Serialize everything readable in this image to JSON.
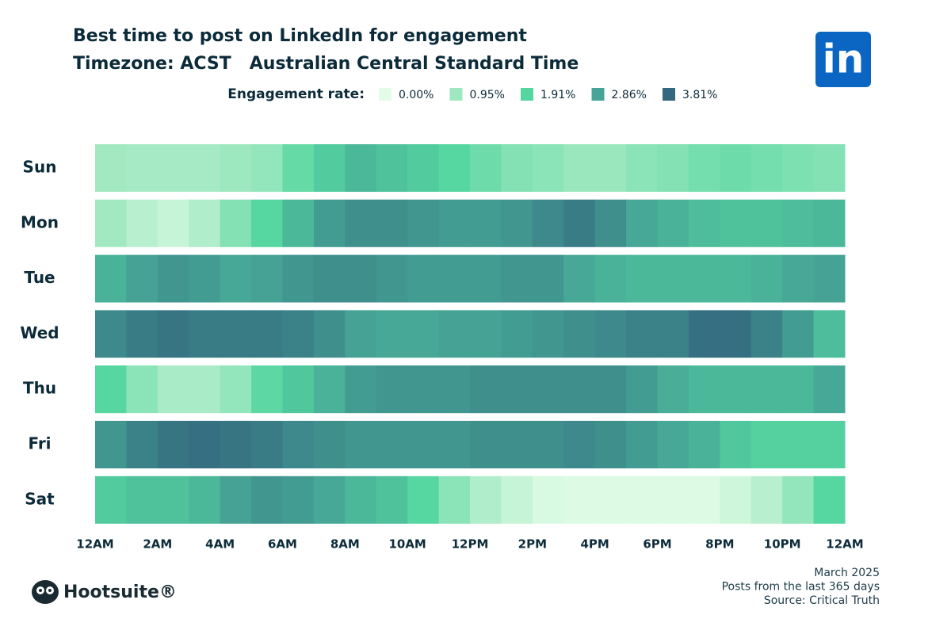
{
  "chart_data": {
    "type": "heatmap",
    "title": "Best time to post on LinkedIn for engagement",
    "subtitle": "Timezone: ACST   Australian Central Standard Time",
    "legend_title": "Engagement rate:",
    "color_scale": [
      {
        "value": 0,
        "label": "0.00%",
        "color": "#e3fce8"
      },
      {
        "value": 0.95,
        "label": "0.95%",
        "color": "#9ee8c0"
      },
      {
        "value": 1.91,
        "label": "1.91%",
        "color": "#55d6a0"
      },
      {
        "value": 2.86,
        "label": "2.86%",
        "color": "#46a596"
      },
      {
        "value": 3.81,
        "label": "3.81%",
        "color": "#33687e"
      }
    ],
    "categories": [
      "Sun",
      "Mon",
      "Tue",
      "Wed",
      "Thu",
      "Fri",
      "Sat"
    ],
    "x": [
      0,
      1,
      2,
      3,
      4,
      5,
      6,
      7,
      8,
      9,
      10,
      11,
      12,
      13,
      14,
      15,
      16,
      17,
      18,
      19,
      20,
      21,
      22,
      23
    ],
    "xlim": [
      0,
      24
    ],
    "xticks": [
      {
        "value": 0,
        "label": "12AM"
      },
      {
        "value": 2,
        "label": "2AM"
      },
      {
        "value": 4,
        "label": "4AM"
      },
      {
        "value": 6,
        "label": "6AM"
      },
      {
        "value": 8,
        "label": "8AM"
      },
      {
        "value": 10,
        "label": "10AM"
      },
      {
        "value": 12,
        "label": "12PM"
      },
      {
        "value": 14,
        "label": "2PM"
      },
      {
        "value": 16,
        "label": "4PM"
      },
      {
        "value": 18,
        "label": "6PM"
      },
      {
        "value": 20,
        "label": "8PM"
      },
      {
        "value": 22,
        "label": "10PM"
      },
      {
        "value": 24,
        "label": "12AM"
      }
    ],
    "values": [
      [
        0.9,
        0.85,
        0.85,
        0.85,
        0.95,
        1.1,
        1.7,
        2.1,
        2.5,
        2.3,
        2.1,
        1.9,
        1.6,
        1.3,
        1.2,
        1.0,
        1.0,
        1.2,
        1.3,
        1.5,
        1.6,
        1.5,
        1.4,
        1.3
      ],
      [
        0.9,
        0.6,
        0.4,
        0.7,
        1.3,
        1.9,
        2.5,
        3.0,
        3.2,
        3.2,
        3.1,
        3.0,
        3.0,
        3.1,
        3.3,
        3.5,
        3.2,
        2.8,
        2.6,
        2.4,
        2.3,
        2.3,
        2.4,
        2.5
      ],
      [
        2.6,
        2.9,
        3.1,
        3.0,
        2.8,
        2.9,
        3.1,
        3.2,
        3.2,
        3.1,
        3.0,
        3.0,
        3.0,
        3.1,
        3.1,
        2.8,
        2.6,
        2.5,
        2.5,
        2.5,
        2.5,
        2.6,
        2.8,
        2.9
      ],
      [
        3.3,
        3.5,
        3.6,
        3.5,
        3.5,
        3.5,
        3.4,
        3.2,
        2.9,
        2.8,
        2.8,
        2.9,
        2.9,
        3.0,
        3.1,
        3.2,
        3.3,
        3.4,
        3.4,
        3.7,
        3.7,
        3.4,
        3.0,
        2.4
      ],
      [
        1.9,
        1.2,
        0.8,
        0.8,
        1.1,
        1.8,
        2.2,
        2.6,
        3.0,
        3.1,
        3.1,
        3.1,
        3.2,
        3.2,
        3.2,
        3.2,
        3.2,
        3.0,
        2.7,
        2.5,
        2.5,
        2.5,
        2.5,
        2.8
      ],
      [
        3.1,
        3.4,
        3.6,
        3.7,
        3.6,
        3.5,
        3.3,
        3.2,
        3.1,
        3.1,
        3.1,
        3.1,
        3.2,
        3.2,
        3.2,
        3.3,
        3.2,
        3.0,
        2.8,
        2.6,
        2.2,
        2.0,
        2.0,
        2.0
      ],
      [
        2.1,
        2.3,
        2.3,
        2.5,
        2.9,
        3.1,
        3.0,
        2.8,
        2.5,
        2.3,
        1.9,
        1.2,
        0.7,
        0.4,
        0.15,
        0.1,
        0.1,
        0.1,
        0.1,
        0.1,
        0.3,
        0.6,
        1.1,
        1.9
      ]
    ],
    "notes": [
      "March 2025",
      "Posts from the last 365 days",
      "Source: Critical Truth"
    ],
    "brand": "Hootsuite®",
    "platform_logo": "in"
  }
}
